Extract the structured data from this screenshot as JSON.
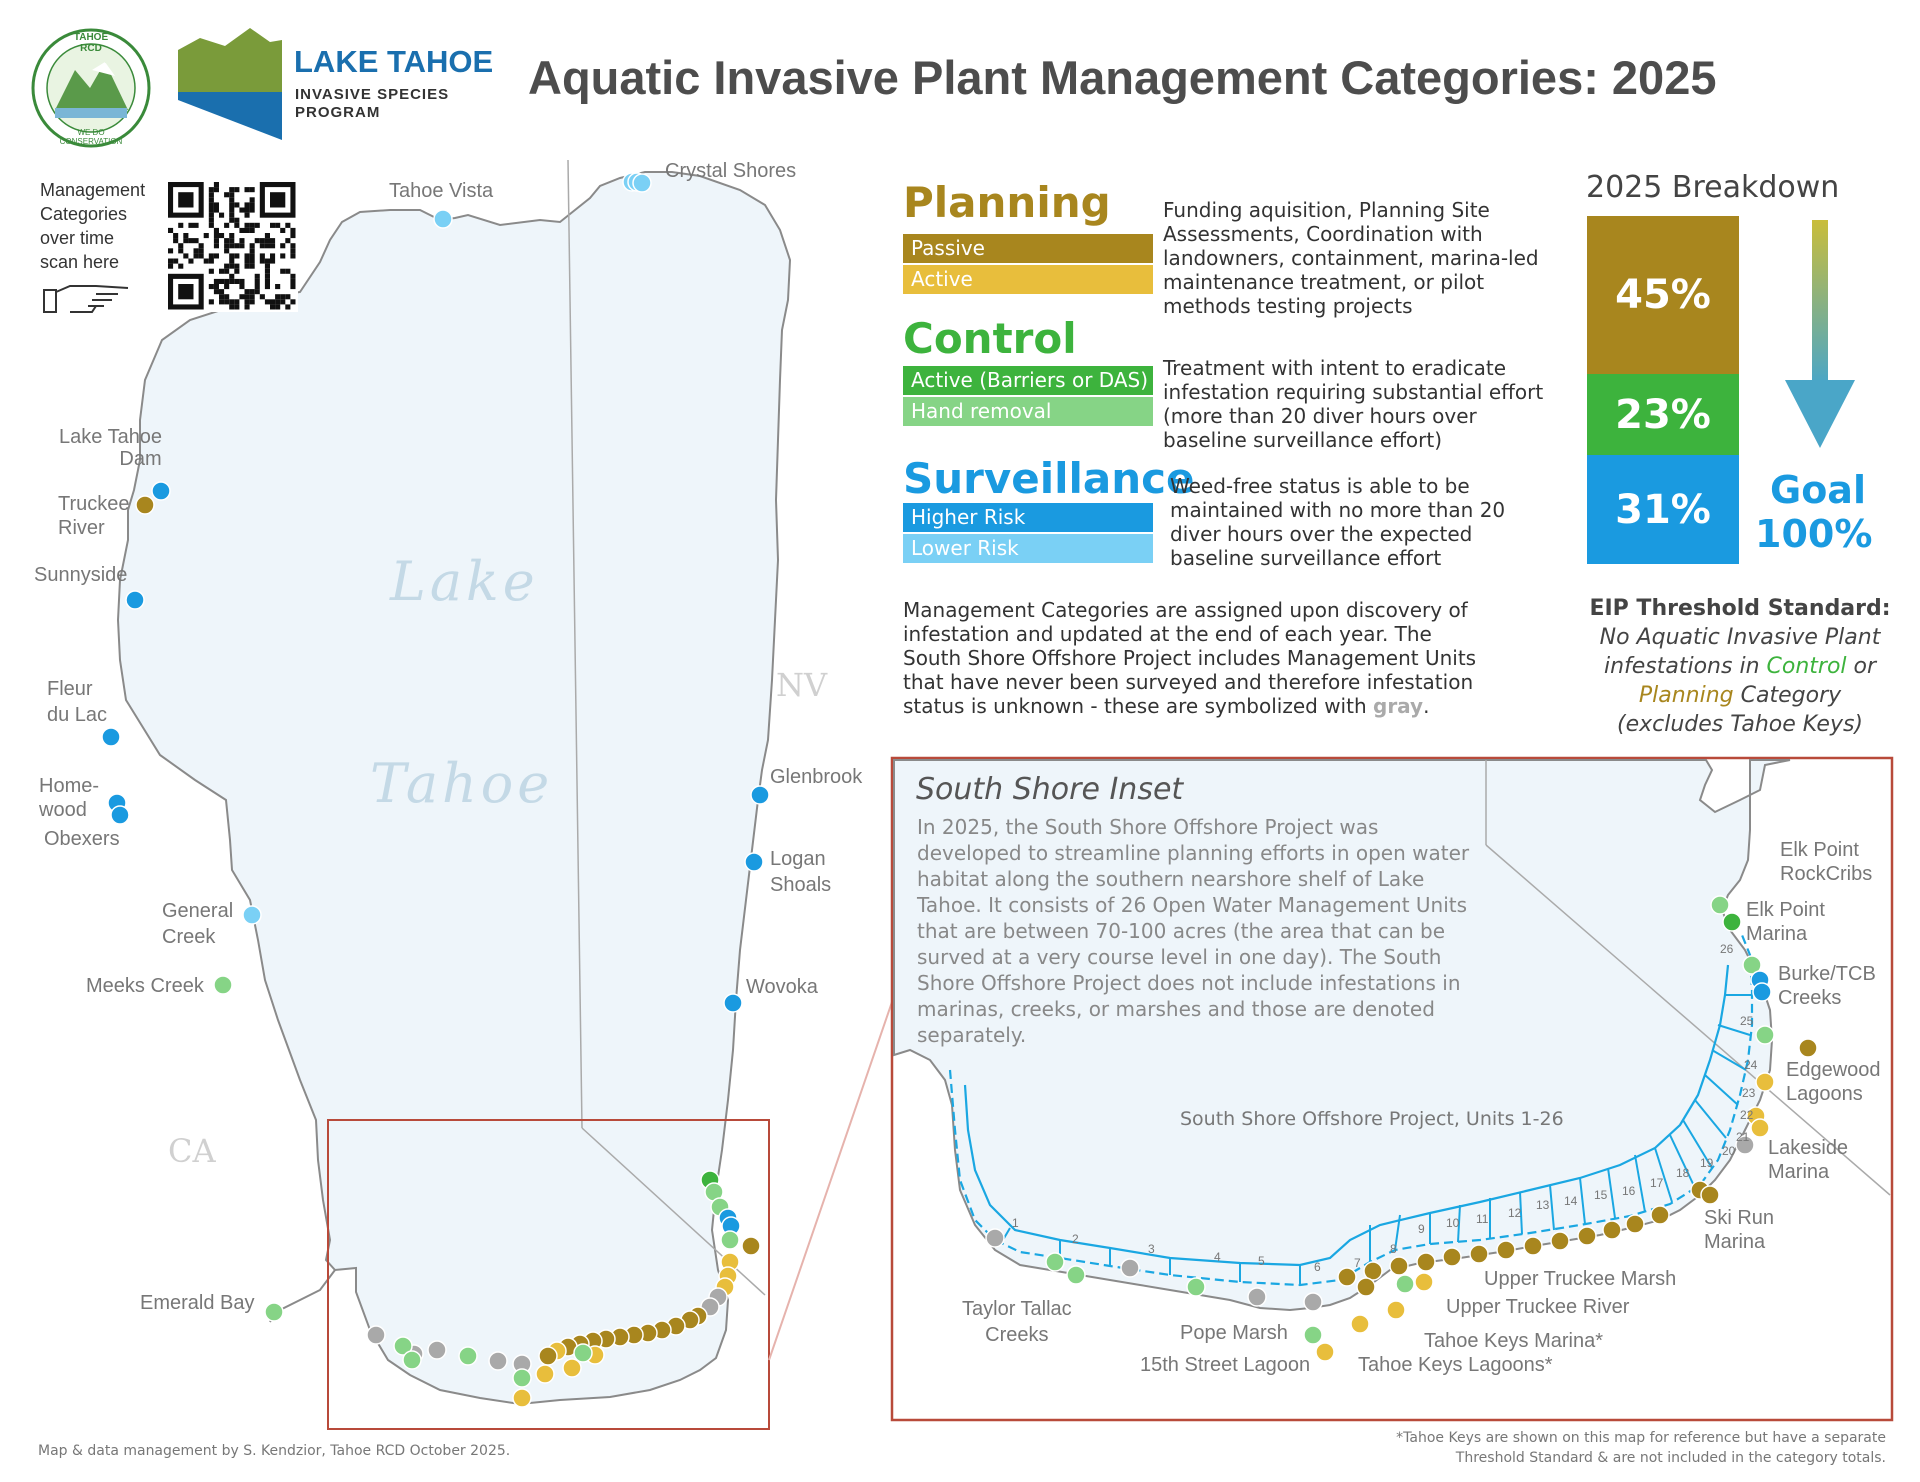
{
  "header": {
    "title": "Aquatic Invasive Plant Management Categories: 2025",
    "logo_rcd_top": "TAHOE RCD",
    "logo_rcd_bottom": "WE DO CONSERVATION",
    "logo_program_line1": "LAKE TAHOE",
    "logo_program_line2": "INVASIVE SPECIES",
    "logo_program_line3": "PROGRAM"
  },
  "qr": {
    "lines": [
      "Management",
      "Categories",
      "over time",
      "scan here"
    ]
  },
  "map": {
    "lake_name_1": "Lake",
    "lake_name_2": "Tahoe",
    "state_nv": "NV",
    "state_ca": "CA",
    "colors": {
      "planning_passive": "#a8861e",
      "planning_active": "#e8be3c",
      "control_active": "#3db33d",
      "control_hand": "#86d486",
      "surv_high": "#1a9ae0",
      "surv_low": "#7ad0f5",
      "unknown": "#a9a9a9",
      "lake": "#eef5fa",
      "shore": "#8a8a8a",
      "inset_frame": "#b84a3a"
    },
    "sites": [
      {
        "label": "Crystal Shores",
        "category": "surv_low"
      },
      {
        "label": "Tahoe Vista",
        "category": "surv_low"
      },
      {
        "label": "Lake Tahoe Dam",
        "category": "surv_high"
      },
      {
        "label": "Truckee River",
        "category": "planning_passive"
      },
      {
        "label": "Sunnyside",
        "category": "surv_high"
      },
      {
        "label": "Fleur du Lac",
        "category": "surv_high"
      },
      {
        "label": "Homewood",
        "category": "surv_high"
      },
      {
        "label": "Obexers",
        "category": "surv_high"
      },
      {
        "label": "General Creek",
        "category": "surv_low"
      },
      {
        "label": "Meeks Creek",
        "category": "control_hand"
      },
      {
        "label": "Emerald Bay",
        "category": "control_hand"
      },
      {
        "label": "Glenbrook",
        "category": "surv_high"
      },
      {
        "label": "Logan Shoals",
        "category": "surv_high"
      },
      {
        "label": "Wovoka",
        "category": "surv_high"
      }
    ],
    "site_labels": {
      "crystal": "Crystal Shores",
      "vista": "Tahoe Vista",
      "dam_1": "Lake Tahoe",
      "dam_2": "Dam",
      "truckee_1": "Truckee",
      "truckee_2": "River",
      "sunnyside": "Sunnyside",
      "fleur_1": "Fleur",
      "fleur_2": "du Lac",
      "home_1": "Home-",
      "home_2": "wood",
      "obexers": "Obexers",
      "general_1": "General",
      "general_2": "Creek",
      "meeks": "Meeks Creek",
      "emerald": "Emerald Bay",
      "glenbrook": "Glenbrook",
      "logan_1": "Logan",
      "logan_2": "Shoals",
      "wovoka": "Wovoka"
    }
  },
  "legend": {
    "planning": {
      "title": "Planning",
      "bar1": "Passive",
      "bar2": "Active",
      "desc": "Funding aquisition, Planning Site Assessments, Coordination with landowners, containment, marina-led maintenance treatment, or pilot methods testing projects"
    },
    "control": {
      "title": "Control",
      "bar1": "Active (Barriers or DAS)",
      "bar2": "Hand removal",
      "desc": "Treatment with intent to eradicate infestation requiring substantial effort (more than 20 diver hours over baseline surveillance effort)"
    },
    "surveillance": {
      "title": "Surveillance",
      "bar1": "Higher Risk",
      "bar2": "Lower Risk",
      "desc": "Weed-free status is able to be maintained with no more than 20 diver hours over the expected baseline surveillance effort"
    },
    "note_pre": "Management Categories are assigned upon discovery of infestation and updated at the end of each year. The South Shore Offshore Project includes Management Units that have never been surveyed and therefore infestation status is unknown - these are symbolized with ",
    "note_gray": "gray",
    "note_post": "."
  },
  "breakdown": {
    "title": "2025 Breakdown",
    "segments": [
      {
        "label": "45%",
        "value": 45,
        "color": "#a8861e"
      },
      {
        "label": "23%",
        "value": 23,
        "color": "#3db33d"
      },
      {
        "label": "31%",
        "value": 31,
        "color": "#1a9ae0"
      }
    ],
    "goal_1": "Goal",
    "goal_2": "100%",
    "eip_title": "EIP Threshold Standard:",
    "eip_line1": "No Aquatic Invasive Plant",
    "eip_line2_pre": "infestations in ",
    "eip_line2_control": "Control",
    "eip_line2_post": " or",
    "eip_line3_planning": "Planning",
    "eip_line3_post": " Category",
    "eip_line4": "(excludes Tahoe Keys)"
  },
  "inset": {
    "title": "South Shore Inset",
    "text": "In 2025, the South Shore Offshore Project was developed to streamline planning efforts in open water habitat along the southern nearshore shelf of Lake Tahoe. It consists of 26 Open Water Management Units that are between 70-100 acres (the area that can be surved at a very course level in one day). The South Shore Offshore Project does not include infestations in marinas, creeks, or marshes and those are denoted separately.",
    "project_label": "South Shore Offshore Project, Units 1-26",
    "unit_numbers": [
      "1",
      "2",
      "3",
      "4",
      "5",
      "6",
      "7",
      "8",
      "9",
      "10",
      "11",
      "12",
      "13",
      "14",
      "15",
      "16",
      "17",
      "18",
      "19",
      "20",
      "21",
      "22",
      "23",
      "24",
      "25",
      "26"
    ],
    "labels": {
      "elk_rock_1": "Elk Point",
      "elk_rock_2": "RockCribs",
      "elk_marina_1": "Elk Point",
      "elk_marina_2": "Marina",
      "burke_1": "Burke/TCB",
      "burke_2": "Creeks",
      "edgewood_1": "Edgewood",
      "edgewood_2": "Lagoons",
      "lakeside_1": "Lakeside",
      "lakeside_2": "Marina",
      "skirun_1": "Ski Run",
      "skirun_2": "Marina",
      "utm": "Upper Truckee Marsh",
      "utr": "Upper Truckee River",
      "tkm": "Tahoe Keys Marina*",
      "tkl": "Tahoe Keys Lagoons*",
      "pope": "Pope Marsh",
      "fifteenth": "15th Street Lagoon",
      "taylor_1": "Taylor Tallac",
      "taylor_2": "Creeks"
    }
  },
  "footer": {
    "credit": "Map & data management by S. Kendzior, Tahoe RCD October 2025.",
    "note_1": "*Tahoe Keys are shown on this map for reference but have a separate",
    "note_2": "Threshold Standard & are not included in the category totals."
  }
}
